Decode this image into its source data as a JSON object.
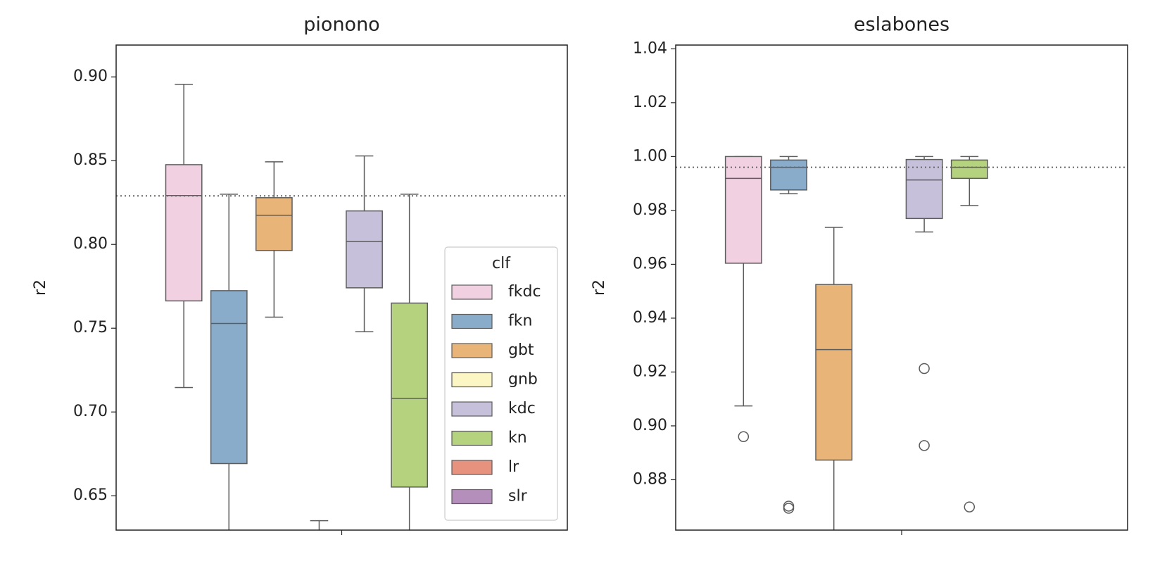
{
  "chart_data": [
    {
      "type": "box",
      "title": "pionono",
      "ylabel": "r2",
      "categories": [
        null
      ],
      "ylim": [
        0.6295,
        0.919
      ],
      "yticks": [
        0.65,
        {
          "value": 0.7,
          "label": "0.70"
        },
        0.75,
        {
          "value": 0.8,
          "label": "0.80"
        },
        0.85,
        {
          "value": 0.9,
          "label": "0.90"
        }
      ],
      "hline": 0.829,
      "legend": {
        "title": "clf",
        "loc": "lower right"
      },
      "series": [
        {
          "name": "fkdc",
          "color": "#f1d0e2",
          "box": {
            "whislo": 0.7146,
            "q1": 0.7663,
            "med": 0.8292,
            "q3": 0.8476,
            "whishi": 0.8956,
            "fliers": []
          }
        },
        {
          "name": "fkn",
          "color": "#8aaccb",
          "box": {
            "whislo": null,
            "q1": 0.6692,
            "med": 0.7528,
            "q3": 0.7724,
            "whishi": 0.83,
            "fliers": []
          }
        },
        {
          "name": "gbt",
          "color": "#e8b478",
          "box": {
            "whislo": 0.7566,
            "q1": 0.7964,
            "med": 0.8174,
            "q3": 0.8279,
            "whishi": 0.8493,
            "fliers": []
          }
        },
        {
          "name": "gnb",
          "color": "#fbf6c4",
          "box": {
            "whislo": null,
            "q1": null,
            "med": null,
            "q3": null,
            "whishi": 0.6351,
            "fliers": []
          }
        },
        {
          "name": "kdc",
          "color": "#c6c0da",
          "box": {
            "whislo": 0.7479,
            "q1": 0.7741,
            "med": 0.8017,
            "q3": 0.82,
            "whishi": 0.8528,
            "fliers": []
          }
        },
        {
          "name": "kn",
          "color": "#b5d27e",
          "box": {
            "whislo": null,
            "q1": 0.6552,
            "med": 0.7081,
            "q3": 0.765,
            "whishi": 0.83,
            "fliers": []
          }
        },
        {
          "name": "lr",
          "color": "#e7917f",
          "box": null
        },
        {
          "name": "slr",
          "color": "#b58fbc",
          "box": null
        }
      ]
    },
    {
      "type": "box",
      "title": "eslabones",
      "ylabel": "r2",
      "categories": [
        null
      ],
      "ylim": [
        0.8613,
        1.0414
      ],
      "yticks": [
        0.88,
        {
          "value": 0.9,
          "label": "0.90"
        },
        0.92,
        0.94,
        0.96,
        0.98,
        {
          "value": 1.0,
          "label": "1.00"
        },
        1.02,
        1.04
      ],
      "hline": 0.996,
      "series": [
        {
          "color": "#f1d0e2",
          "box": {
            "whislo": 0.9074,
            "q1": 0.9604,
            "med": 0.9919,
            "q3": 1.0,
            "whishi": 1.0,
            "fliers": [
              0.896
            ]
          }
        },
        {
          "color": "#8aaccb",
          "box": {
            "whislo": 0.9862,
            "q1": 0.9876,
            "med": 0.996,
            "q3": 0.9987,
            "whishi": 1.0,
            "fliers": [
              0.8702,
              0.8694
            ]
          }
        },
        {
          "color": "#e8b478",
          "box": {
            "whislo": null,
            "q1": 0.8873,
            "med": 0.9283,
            "q3": 0.9525,
            "whishi": 0.9737,
            "fliers": []
          }
        },
        null,
        {
          "color": "#c6c0da",
          "box": {
            "whislo": 0.972,
            "q1": 0.977,
            "med": 0.9913,
            "q3": 0.9989,
            "whishi": 1.0,
            "fliers": [
              0.9213,
              0.8927
            ]
          }
        },
        {
          "color": "#b5d27e",
          "box": {
            "whislo": 0.9818,
            "q1": 0.9919,
            "med": 0.996,
            "q3": 0.9987,
            "whishi": 1.0,
            "fliers": [
              0.8699
            ]
          }
        },
        null,
        null
      ]
    }
  ]
}
